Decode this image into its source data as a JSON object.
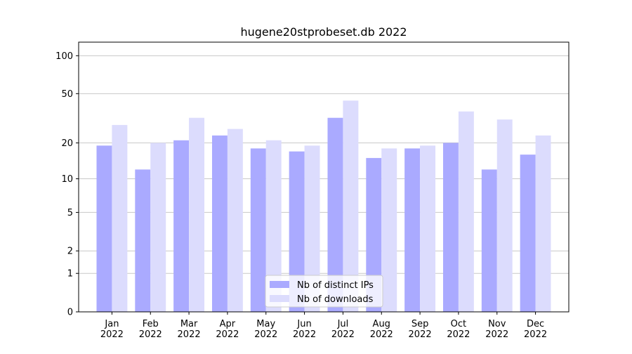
{
  "chart_data": {
    "type": "bar",
    "title": "hugene20stprobeset.db 2022",
    "categories": [
      [
        "Jan",
        "2022"
      ],
      [
        "Feb",
        "2022"
      ],
      [
        "Mar",
        "2022"
      ],
      [
        "Apr",
        "2022"
      ],
      [
        "May",
        "2022"
      ],
      [
        "Jun",
        "2022"
      ],
      [
        "Jul",
        "2022"
      ],
      [
        "Aug",
        "2022"
      ],
      [
        "Sep",
        "2022"
      ],
      [
        "Oct",
        "2022"
      ],
      [
        "Nov",
        "2022"
      ],
      [
        "Dec",
        "2022"
      ]
    ],
    "series": [
      {
        "name": "Nb of distinct IPs",
        "color": "#aaaaff",
        "values": [
          19,
          12,
          21,
          23,
          18,
          17,
          32,
          15,
          18,
          20,
          12,
          16
        ]
      },
      {
        "name": "Nb of downloads",
        "color": "#dcdcfd",
        "values": [
          28,
          20,
          32,
          26,
          21,
          19,
          44,
          18,
          19,
          36,
          31,
          23
        ]
      }
    ],
    "yscale": "log1p",
    "ylim": [
      0,
      128
    ],
    "yticks": [
      0,
      1,
      2,
      5,
      10,
      20,
      50,
      100
    ],
    "grid": true,
    "legend": "lower center"
  }
}
